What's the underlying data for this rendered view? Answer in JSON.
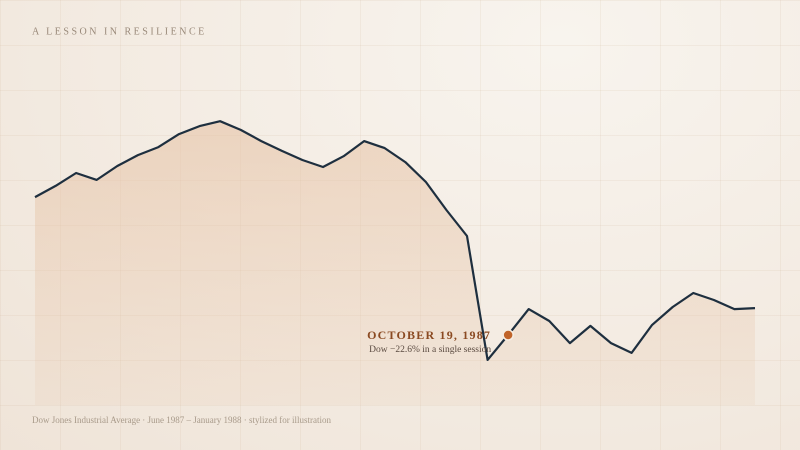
{
  "chart_data": {
    "type": "area",
    "title": "A LESSON IN RESILIENCE",
    "caption": "Dow Jones Industrial Average · June 1987 – January 1988 · stylized for illustration",
    "values": [
      59.4,
      62.6,
      66.3,
      64.3,
      68.3,
      71.4,
      73.7,
      77.4,
      79.7,
      81.1,
      78.6,
      75.4,
      72.6,
      70,
      68,
      71.1,
      75.4,
      73.4,
      69.4,
      63.7,
      55.7,
      48.3,
      12.9,
      20,
      27.4,
      24,
      17.7,
      22.6,
      17.7,
      14.9,
      22.9,
      28,
      32,
      30,
      27.4,
      27.7
    ],
    "ylim": [
      0,
      100
    ],
    "color": "#1e2f3f",
    "fill_color": "#e6c3a6",
    "highlight": 23,
    "highlight_color": "#c0642a",
    "annotation": {
      "title": "OCTOBER 19, 1987",
      "text": "Dow −22.6% in a single session"
    }
  }
}
